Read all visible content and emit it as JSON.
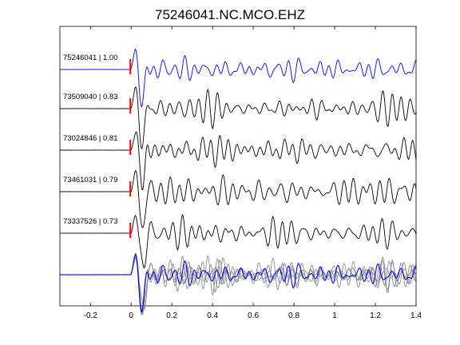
{
  "chart_data": {
    "type": "line",
    "title": "75246041.NC.MCO.EHZ",
    "xlabel": "",
    "ylabel": "",
    "xlim": [
      -0.35,
      1.4
    ],
    "xticks": [
      -0.2,
      0,
      0.2,
      0.4,
      0.6,
      0.8,
      1,
      1.2,
      1.4
    ],
    "xtick_labels": [
      "-0.2",
      "0",
      "0.2",
      "0.4",
      "0.6",
      "0.8",
      "1",
      "1.2",
      "1.4"
    ],
    "grid": false,
    "legend": "none",
    "pick_time": 0,
    "colors": {
      "master": "#0000ff",
      "trace": "#000000",
      "overlay": "#808080",
      "pick": "#ff0000"
    },
    "traces": [
      {
        "label": "75246041 | 1.00",
        "event_id": "75246041",
        "correlation": 1.0,
        "master": true
      },
      {
        "label": "73509040 | 0.83",
        "event_id": "73509040",
        "correlation": 0.83,
        "master": false
      },
      {
        "label": "73024846 | 0.81",
        "event_id": "73024846",
        "correlation": 0.81,
        "master": false
      },
      {
        "label": "73461031 | 0.79",
        "event_id": "73461031",
        "correlation": 0.79,
        "master": false
      },
      {
        "label": "73337526 | 0.73",
        "event_id": "73337526",
        "correlation": 0.73,
        "master": false
      }
    ],
    "stack": {
      "description_visible": false
    }
  }
}
